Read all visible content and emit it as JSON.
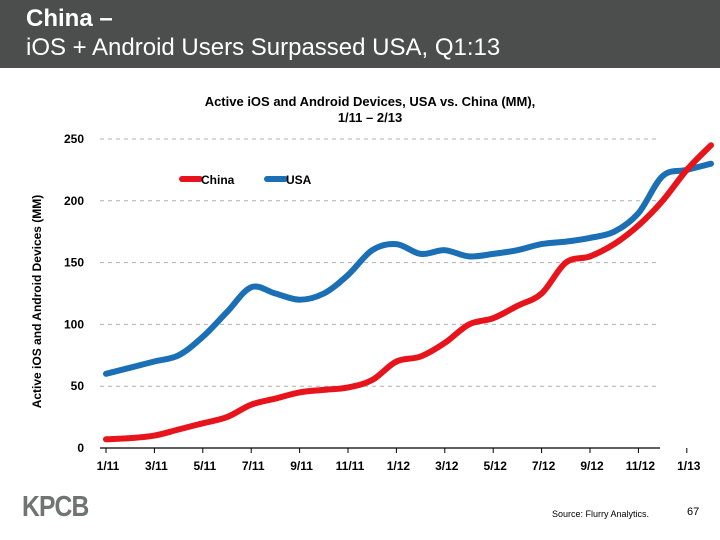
{
  "header": {
    "title_line1": "China –",
    "title_line2": "iOS + Android Users Surpassed USA, Q1:13"
  },
  "colors": {
    "header_bg": "#4b4e4d",
    "china": "#e8141b",
    "usa": "#1a6fb5",
    "grid": "#b0b0b0"
  },
  "chart_data": {
    "type": "line",
    "title_line1": "Active iOS and Android Devices, USA vs. China (MM),",
    "title_line2": "1/11 – 2/13",
    "ylabel": "Active iOS and Android Devices (MM)",
    "xlabel": "",
    "ylim": [
      0,
      250
    ],
    "yticks": [
      0,
      50,
      100,
      150,
      200,
      250
    ],
    "grid": true,
    "legend_position": "top-left",
    "x_tick_labels": [
      "1/11",
      "3/11",
      "5/11",
      "7/11",
      "9/11",
      "11/11",
      "1/12",
      "3/12",
      "5/12",
      "7/12",
      "9/12",
      "11/12",
      "1/13"
    ],
    "x_months": [
      "1/11",
      "2/11",
      "3/11",
      "4/11",
      "5/11",
      "6/11",
      "7/11",
      "8/11",
      "9/11",
      "10/11",
      "11/11",
      "12/11",
      "1/12",
      "2/12",
      "3/12",
      "4/12",
      "5/12",
      "6/12",
      "7/12",
      "8/12",
      "9/12",
      "10/12",
      "11/12",
      "12/12",
      "1/13",
      "2/13"
    ],
    "series": [
      {
        "name": "China",
        "color": "#e8141b",
        "values": [
          7,
          8,
          10,
          15,
          20,
          25,
          35,
          40,
          45,
          47,
          49,
          55,
          70,
          74,
          85,
          100,
          105,
          115,
          125,
          150,
          155,
          165,
          180,
          200,
          225,
          245
        ]
      },
      {
        "name": "USA",
        "color": "#1a6fb5",
        "values": [
          60,
          65,
          70,
          75,
          90,
          110,
          130,
          125,
          120,
          125,
          140,
          160,
          165,
          157,
          160,
          155,
          157,
          160,
          165,
          167,
          170,
          175,
          190,
          220,
          225,
          230
        ]
      }
    ]
  },
  "footer": {
    "logo": "KPCB",
    "source": "Source: Flurry Analytics.",
    "page_number": "67"
  }
}
